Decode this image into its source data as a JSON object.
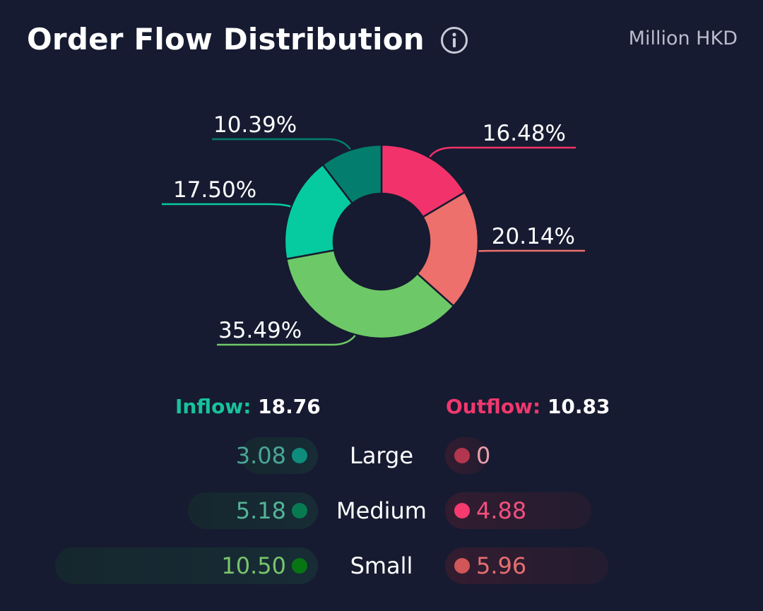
{
  "header": {
    "title": "Order Flow Distribution",
    "unit": "Million HKD"
  },
  "icons": {
    "info": "info-circle-icon"
  },
  "chart_data": {
    "type": "donut",
    "start": "top",
    "direction": "clockwise",
    "slices": [
      {
        "label": "16.48%",
        "value": 16.48,
        "color": "#f2336b",
        "side": "right"
      },
      {
        "label": "20.14%",
        "value": 20.14,
        "color": "#ed706c",
        "side": "right"
      },
      {
        "label": "35.49%",
        "value": 35.49,
        "color": "#6dc967",
        "side": "left"
      },
      {
        "label": "17.50%",
        "value": 17.5,
        "color": "#07cba0",
        "side": "left"
      },
      {
        "label": "10.39%",
        "value": 10.39,
        "color": "#037e6e",
        "side": "left"
      }
    ]
  },
  "summary": {
    "inflow_label": "Inflow:",
    "inflow_value": "18.76",
    "inflow_color": "#17c39c",
    "outflow_label": "Outflow:",
    "outflow_value": "10.83",
    "outflow_color": "#f0386e"
  },
  "rows": [
    {
      "category": "Large",
      "inflow": "3.08",
      "inflow_num": 3.08,
      "inflow_dot": "#0e8c7c",
      "inflow_text": "#4aa69a",
      "outflow": "0",
      "outflow_num": 0,
      "outflow_dot": "#b2364f",
      "outflow_text": "#e7a0ad"
    },
    {
      "category": "Medium",
      "inflow": "5.18",
      "inflow_num": 5.18,
      "inflow_dot": "#087a52",
      "inflow_text": "#54b497",
      "outflow": "4.88",
      "outflow_num": 4.88,
      "outflow_dot": "#f43a6f",
      "outflow_text": "#f1507e"
    },
    {
      "category": "Small",
      "inflow": "10.50",
      "inflow_num": 10.5,
      "inflow_dot": "#087513",
      "inflow_text": "#79c46c",
      "outflow": "5.96",
      "outflow_num": 5.96,
      "outflow_dot": "#d05657",
      "outflow_text": "#e66f6f"
    }
  ]
}
